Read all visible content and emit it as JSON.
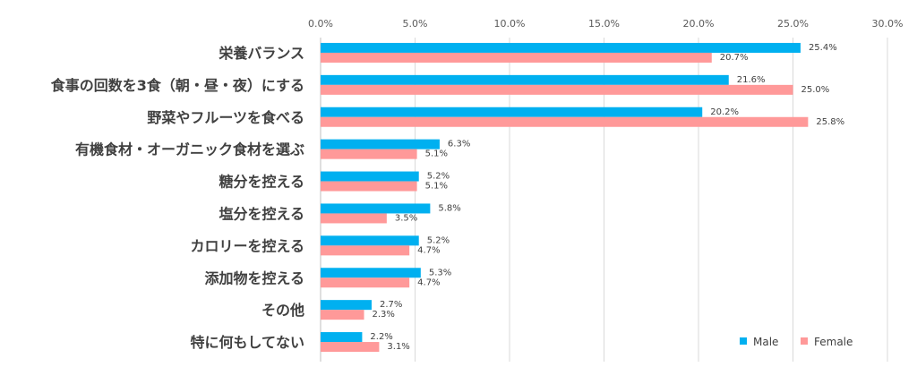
{
  "chart_data": {
    "type": "bar",
    "orientation": "horizontal",
    "title": "",
    "xlabel": "",
    "ylabel": "",
    "xlim": [
      0,
      30
    ],
    "x_ticks": [
      "0.0%",
      "5.0%",
      "10.0%",
      "15.0%",
      "20.0%",
      "25.0%",
      "30.0%"
    ],
    "x_axis_position": "top",
    "grid": true,
    "legend_position": "bottom-right",
    "categories": [
      "栄養バランス",
      "食事の回数を3食（朝・昼・夜）にする",
      "野菜やフルーツを食べる",
      "有機食材・オーガニック食材を選ぶ",
      "糖分を控える",
      "塩分を控える",
      "カロリーを控える",
      "添加物を控える",
      "その他",
      "特に何もしてない"
    ],
    "series": [
      {
        "name": "Male",
        "color": "#00B0F0",
        "values": [
          25.4,
          21.6,
          20.2,
          6.3,
          5.2,
          5.8,
          5.2,
          5.3,
          2.7,
          2.2
        ],
        "labels": [
          "25.4%",
          "21.6%",
          "20.2%",
          "6.3%",
          "5.2%",
          "5.8%",
          "5.2%",
          "5.3%",
          "2.7%",
          "2.2%"
        ]
      },
      {
        "name": "Female",
        "color": "#FF9999",
        "values": [
          20.7,
          25.0,
          25.8,
          5.1,
          5.1,
          3.5,
          4.7,
          4.7,
          2.3,
          3.1
        ],
        "labels": [
          "20.7%",
          "25.0%",
          "25.8%",
          "5.1%",
          "5.1%",
          "3.5%",
          "4.7%",
          "4.7%",
          "2.3%",
          "3.1%"
        ]
      }
    ]
  }
}
